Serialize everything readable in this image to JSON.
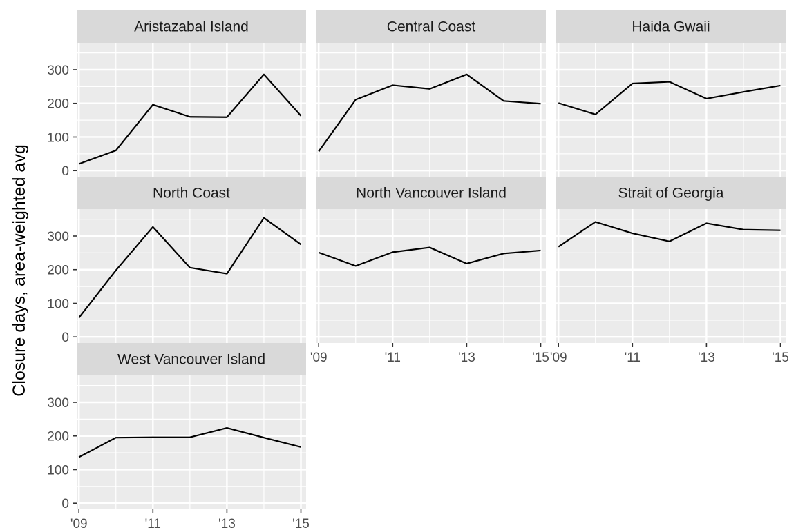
{
  "chart_data": {
    "type": "line",
    "ylabel": "Closure days, area-weighted avg",
    "xlabel": "",
    "x": [
      2009,
      2010,
      2011,
      2012,
      2013,
      2014,
      2015
    ],
    "x_ticks": [
      2009,
      2011,
      2013,
      2015
    ],
    "x_tick_labels": [
      "'09",
      "'11",
      "'13",
      "'15"
    ],
    "xlim": [
      2008.94,
      2015.14
    ],
    "y_ticks": [
      0,
      100,
      200,
      300
    ],
    "y_tick_labels": [
      "0",
      "100",
      "200",
      "300"
    ],
    "ylim": [
      -18,
      380
    ],
    "grid": true,
    "facets": [
      {
        "name": "Aristazabal Island",
        "values": [
          20,
          60,
          196,
          160,
          159,
          286,
          163
        ]
      },
      {
        "name": "Central Coast",
        "values": [
          57,
          211,
          254,
          243,
          286,
          207,
          199
        ]
      },
      {
        "name": "Haida Gwaii",
        "values": [
          201,
          167,
          259,
          264,
          214,
          234,
          253
        ]
      },
      {
        "name": "North Coast",
        "values": [
          57,
          198,
          327,
          206,
          188,
          354,
          275
        ]
      },
      {
        "name": "North Vancouver Island",
        "values": [
          251,
          211,
          252,
          266,
          218,
          248,
          257
        ]
      },
      {
        "name": "Strait of Georgia",
        "values": [
          268,
          342,
          308,
          284,
          338,
          319,
          317
        ]
      },
      {
        "name": "West Vancouver Island",
        "values": [
          137,
          195,
          196,
          196,
          224,
          195,
          167
        ]
      }
    ],
    "colors": {
      "panel_bg": "#ebebeb",
      "strip_bg": "#d9d9d9",
      "grid": "#ffffff",
      "line": "#000000",
      "tick": "#333333",
      "tick_text": "#4d4d4d"
    }
  }
}
